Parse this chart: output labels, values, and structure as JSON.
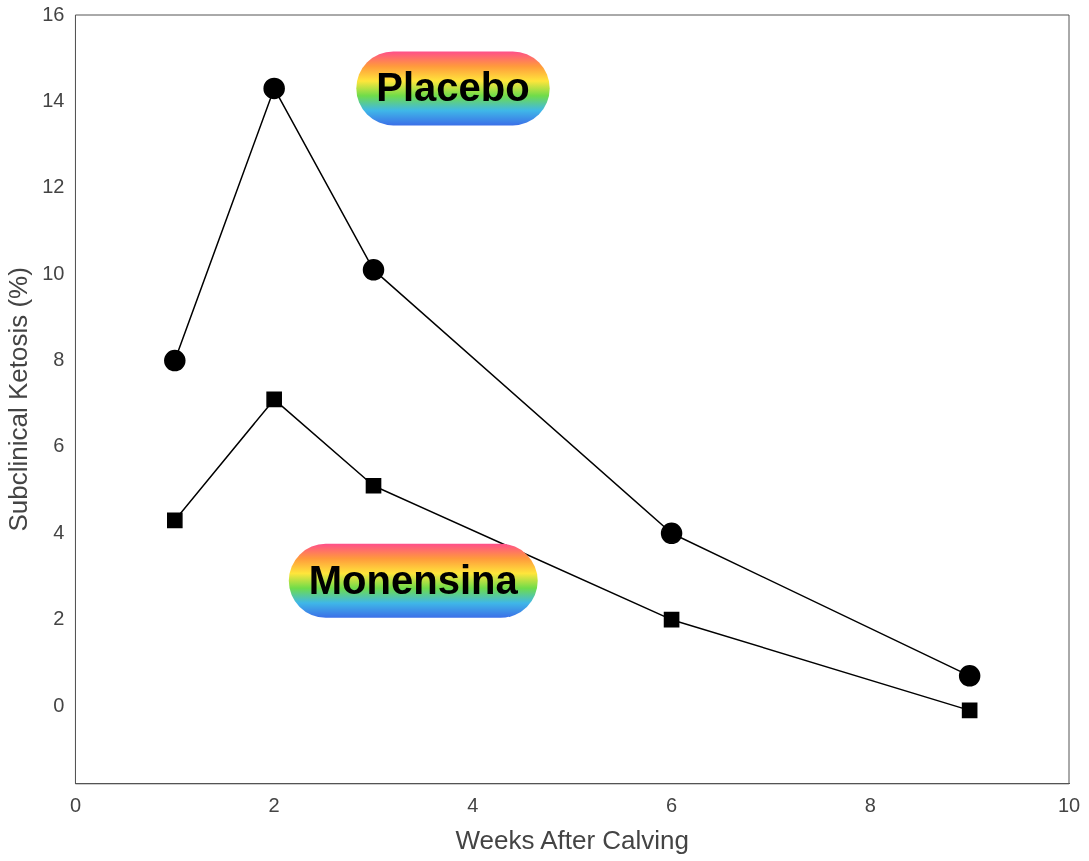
{
  "chart_data": {
    "type": "line",
    "xlabel": "Weeks After Calving",
    "ylabel": "Subclinical Ketosis (%)",
    "xlim": [
      0,
      10
    ],
    "xticks": [
      0,
      2,
      4,
      6,
      8,
      10
    ],
    "ylim": [
      -1.8,
      16
    ],
    "yticks": [
      0,
      2,
      4,
      6,
      8,
      10,
      12,
      14,
      16
    ],
    "grid": false,
    "legend": false,
    "line_style": "solid",
    "series": [
      {
        "name": "Placebo",
        "color": "#000000",
        "marker": "circle",
        "x": [
          1,
          2,
          3,
          6,
          9
        ],
        "values": [
          8.0,
          14.3,
          10.1,
          4.0,
          0.7
        ]
      },
      {
        "name": "Monensina",
        "color": "#000000",
        "marker": "square",
        "x": [
          1,
          2,
          3,
          6,
          9
        ],
        "values": [
          4.3,
          7.1,
          5.1,
          2.0,
          -0.1
        ]
      }
    ]
  }
}
